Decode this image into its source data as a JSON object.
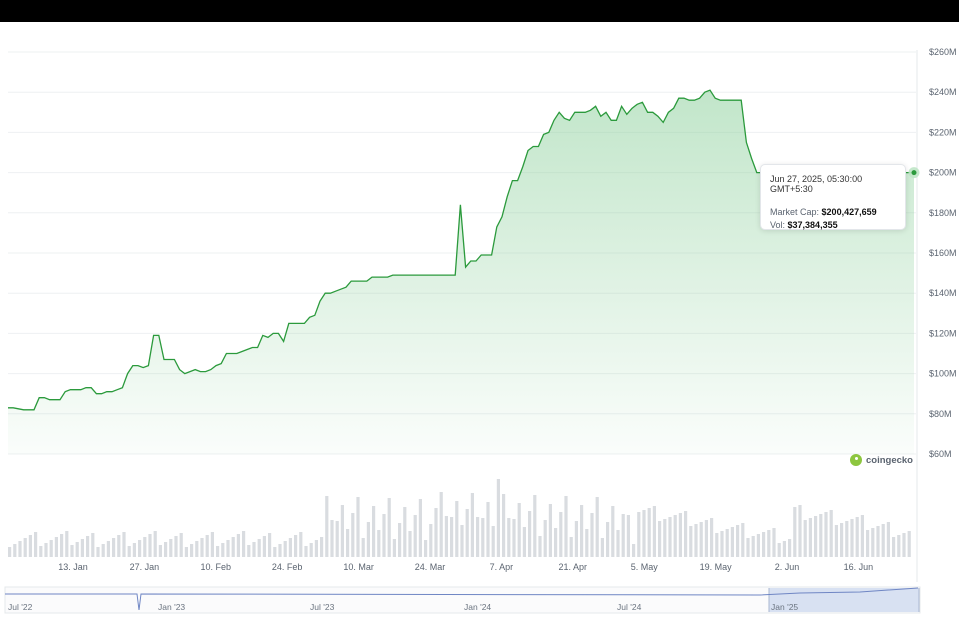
{
  "chart_data": {
    "type": "area",
    "series": [
      {
        "x": [
          "2025-03-29",
          "2025-03-30",
          "2025-03-31",
          "2025-04-01",
          "2025-04-02",
          "2025-04-03",
          "2025-04-04",
          "2025-04-05",
          "2025-04-06",
          "2025-04-07",
          "2025-04-08",
          "2025-04-09",
          "2025-04-10",
          "2025-04-11",
          "2025-04-12",
          "2025-04-13",
          "2025-04-14",
          "2025-04-15",
          "2025-04-16",
          "2025-04-17",
          "2025-04-18",
          "2025-04-19",
          "2025-04-20",
          "2025-04-21",
          "2025-04-22",
          "2025-04-23",
          "2025-04-24",
          "2025-04-25",
          "2025-04-26",
          "2025-04-27",
          "2025-04-28",
          "2025-04-29",
          "2025-04-30",
          "2025-05-01",
          "2025-05-02",
          "2025-05-03",
          "2025-05-04",
          "2025-05-05",
          "2025-05-06",
          "2025-05-07",
          "2025-05-08",
          "2025-05-09",
          "2025-05-10",
          "2025-05-11",
          "2025-05-12",
          "2025-05-13",
          "2025-05-14",
          "2025-05-15",
          "2025-05-16",
          "2025-05-17",
          "2025-05-18",
          "2025-05-19",
          "2025-05-20",
          "2025-05-21",
          "2025-05-22",
          "2025-05-23",
          "2025-05-24",
          "2025-05-25",
          "2025-05-26",
          "2025-05-27"
        ],
        "values": [
          149,
          149,
          184,
          153,
          156,
          156,
          159,
          159,
          159,
          173,
          178,
          188,
          196,
          196,
          203,
          211,
          213,
          213,
          219,
          220,
          226,
          230,
          227,
          226,
          230,
          230,
          230,
          231,
          233,
          228,
          230,
          226,
          226,
          233,
          229,
          232,
          234,
          235,
          230,
          230,
          228,
          225,
          230,
          232,
          237,
          237,
          236,
          236,
          237,
          240,
          241,
          237,
          236,
          236,
          236,
          236,
          236,
          215,
          207,
          200
        ]
      }
    ],
    "prefix_values": [
      83,
      83,
      82.5,
      82,
      82,
      82,
      88,
      88,
      87,
      87,
      87,
      91,
      92,
      92,
      92,
      93,
      93,
      90,
      90,
      91,
      91,
      92,
      93,
      100,
      104,
      104,
      103,
      104,
      119,
      119,
      107,
      107,
      107,
      102,
      100,
      101,
      102,
      101,
      101,
      102,
      104,
      105,
      110,
      110,
      110,
      111,
      112,
      113,
      113,
      119,
      118,
      120,
      120,
      116,
      125,
      125,
      125,
      125,
      128,
      129,
      136,
      140,
      140,
      141,
      142,
      143,
      146,
      146,
      146,
      146,
      148,
      148,
      148,
      148,
      149
    ],
    "prefix_start": "2025-01-03",
    "xticks": [
      "13. Jan",
      "27. Jan",
      "10. Feb",
      "24. Feb",
      "10. Mar",
      "24. Mar",
      "7. Apr",
      "21. Apr",
      "5. May",
      "19. May",
      "2. Jun",
      "16. Jun"
    ],
    "yticks": [
      "$60M",
      "$80M",
      "$100M",
      "$120M",
      "$140M",
      "$160M",
      "$180M",
      "$200M",
      "$220M",
      "$240M",
      "$260M"
    ],
    "ylim": [
      60,
      260
    ],
    "grid": true,
    "line_color": "#2b9a3c",
    "fill_color": "#8fd19e",
    "volume_color": "#d9dce0",
    "navigator_ticks": [
      "Jul '22",
      "Jan '23",
      "Jul '23",
      "Jan '24",
      "Jul '24",
      "Jan '25"
    ]
  },
  "tooltip": {
    "date": "Jun 27, 2025, 05:30:00 GMT+5:30",
    "market_cap_label": "Market Cap:",
    "market_cap_value": "$200,427,659",
    "vol_label": "Vol:",
    "vol_value": "$37,384,355"
  },
  "brand": {
    "name": "coingecko",
    "color": "#8dc63f"
  }
}
